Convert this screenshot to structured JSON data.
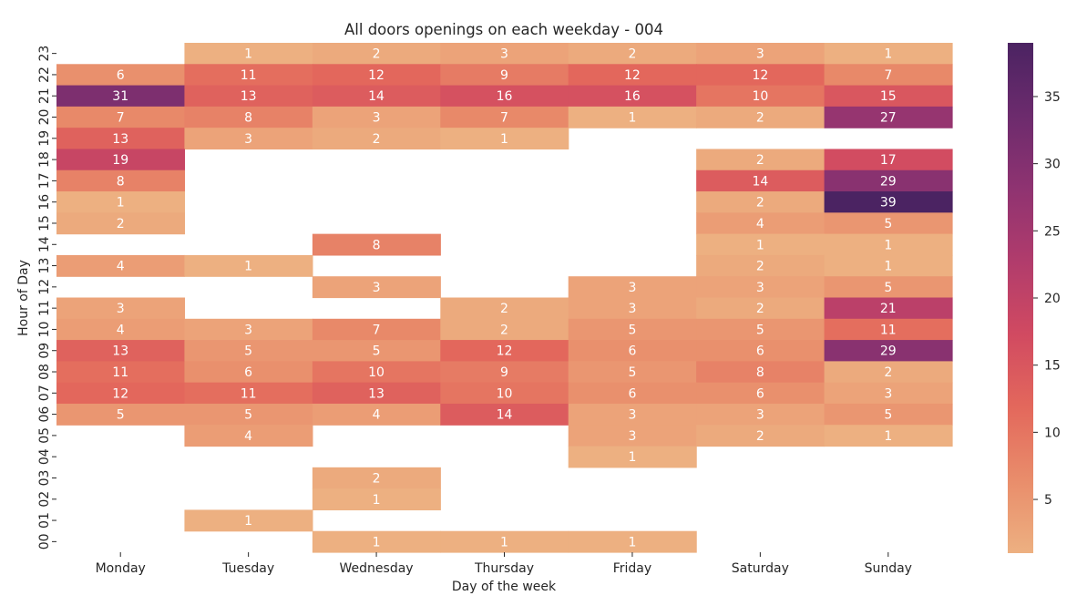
{
  "chart_data": {
    "type": "heatmap",
    "title": "All doors openings on each weekday - 004",
    "xlabel": "Day of the week",
    "ylabel": "Hour of Day",
    "x_categories": [
      "Monday",
      "Tuesday",
      "Wednesday",
      "Thursday",
      "Friday",
      "Saturday",
      "Sunday"
    ],
    "y_categories": [
      "23",
      "22",
      "21",
      "20",
      "19",
      "18",
      "17",
      "16",
      "15",
      "14",
      "13",
      "12",
      "11",
      "10",
      "09",
      "08",
      "07",
      "06",
      "05",
      "04",
      "03",
      "02",
      "01",
      "00"
    ],
    "values": [
      [
        null,
        1,
        2,
        3,
        2,
        3,
        1
      ],
      [
        6,
        11,
        12,
        9,
        12,
        12,
        7
      ],
      [
        31,
        13,
        14,
        16,
        16,
        10,
        15
      ],
      [
        7,
        8,
        3,
        7,
        1,
        2,
        27
      ],
      [
        13,
        3,
        2,
        1,
        null,
        null,
        null
      ],
      [
        19,
        null,
        null,
        null,
        null,
        2,
        17
      ],
      [
        8,
        null,
        null,
        null,
        null,
        14,
        29
      ],
      [
        1,
        null,
        null,
        null,
        null,
        2,
        39
      ],
      [
        2,
        null,
        null,
        null,
        null,
        4,
        5
      ],
      [
        null,
        null,
        8,
        null,
        null,
        1,
        1
      ],
      [
        4,
        1,
        null,
        null,
        null,
        2,
        1
      ],
      [
        null,
        null,
        3,
        null,
        3,
        3,
        5
      ],
      [
        3,
        null,
        null,
        2,
        3,
        2,
        21
      ],
      [
        4,
        3,
        7,
        2,
        5,
        5,
        11
      ],
      [
        13,
        5,
        5,
        12,
        6,
        6,
        29
      ],
      [
        11,
        6,
        10,
        9,
        5,
        8,
        2
      ],
      [
        12,
        11,
        13,
        10,
        6,
        6,
        3
      ],
      [
        5,
        5,
        4,
        14,
        3,
        3,
        5
      ],
      [
        null,
        4,
        null,
        null,
        3,
        2,
        1
      ],
      [
        null,
        null,
        null,
        null,
        1,
        null,
        null
      ],
      [
        null,
        null,
        2,
        null,
        null,
        null,
        null
      ],
      [
        null,
        null,
        1,
        null,
        null,
        null,
        null
      ],
      [
        null,
        1,
        null,
        null,
        null,
        null,
        null
      ],
      [
        null,
        null,
        1,
        1,
        1,
        null,
        null
      ]
    ],
    "colorbar": {
      "min": 1,
      "max": 39,
      "ticks": [
        5,
        10,
        15,
        20,
        25,
        30,
        35
      ]
    },
    "colormap": "flare",
    "colormap_stops": [
      "#edb081",
      "#e98d6b",
      "#e3685c",
      "#d14a61",
      "#b13c6c",
      "#8f3371",
      "#6c2b6d",
      "#4b2362"
    ],
    "grid": false
  }
}
